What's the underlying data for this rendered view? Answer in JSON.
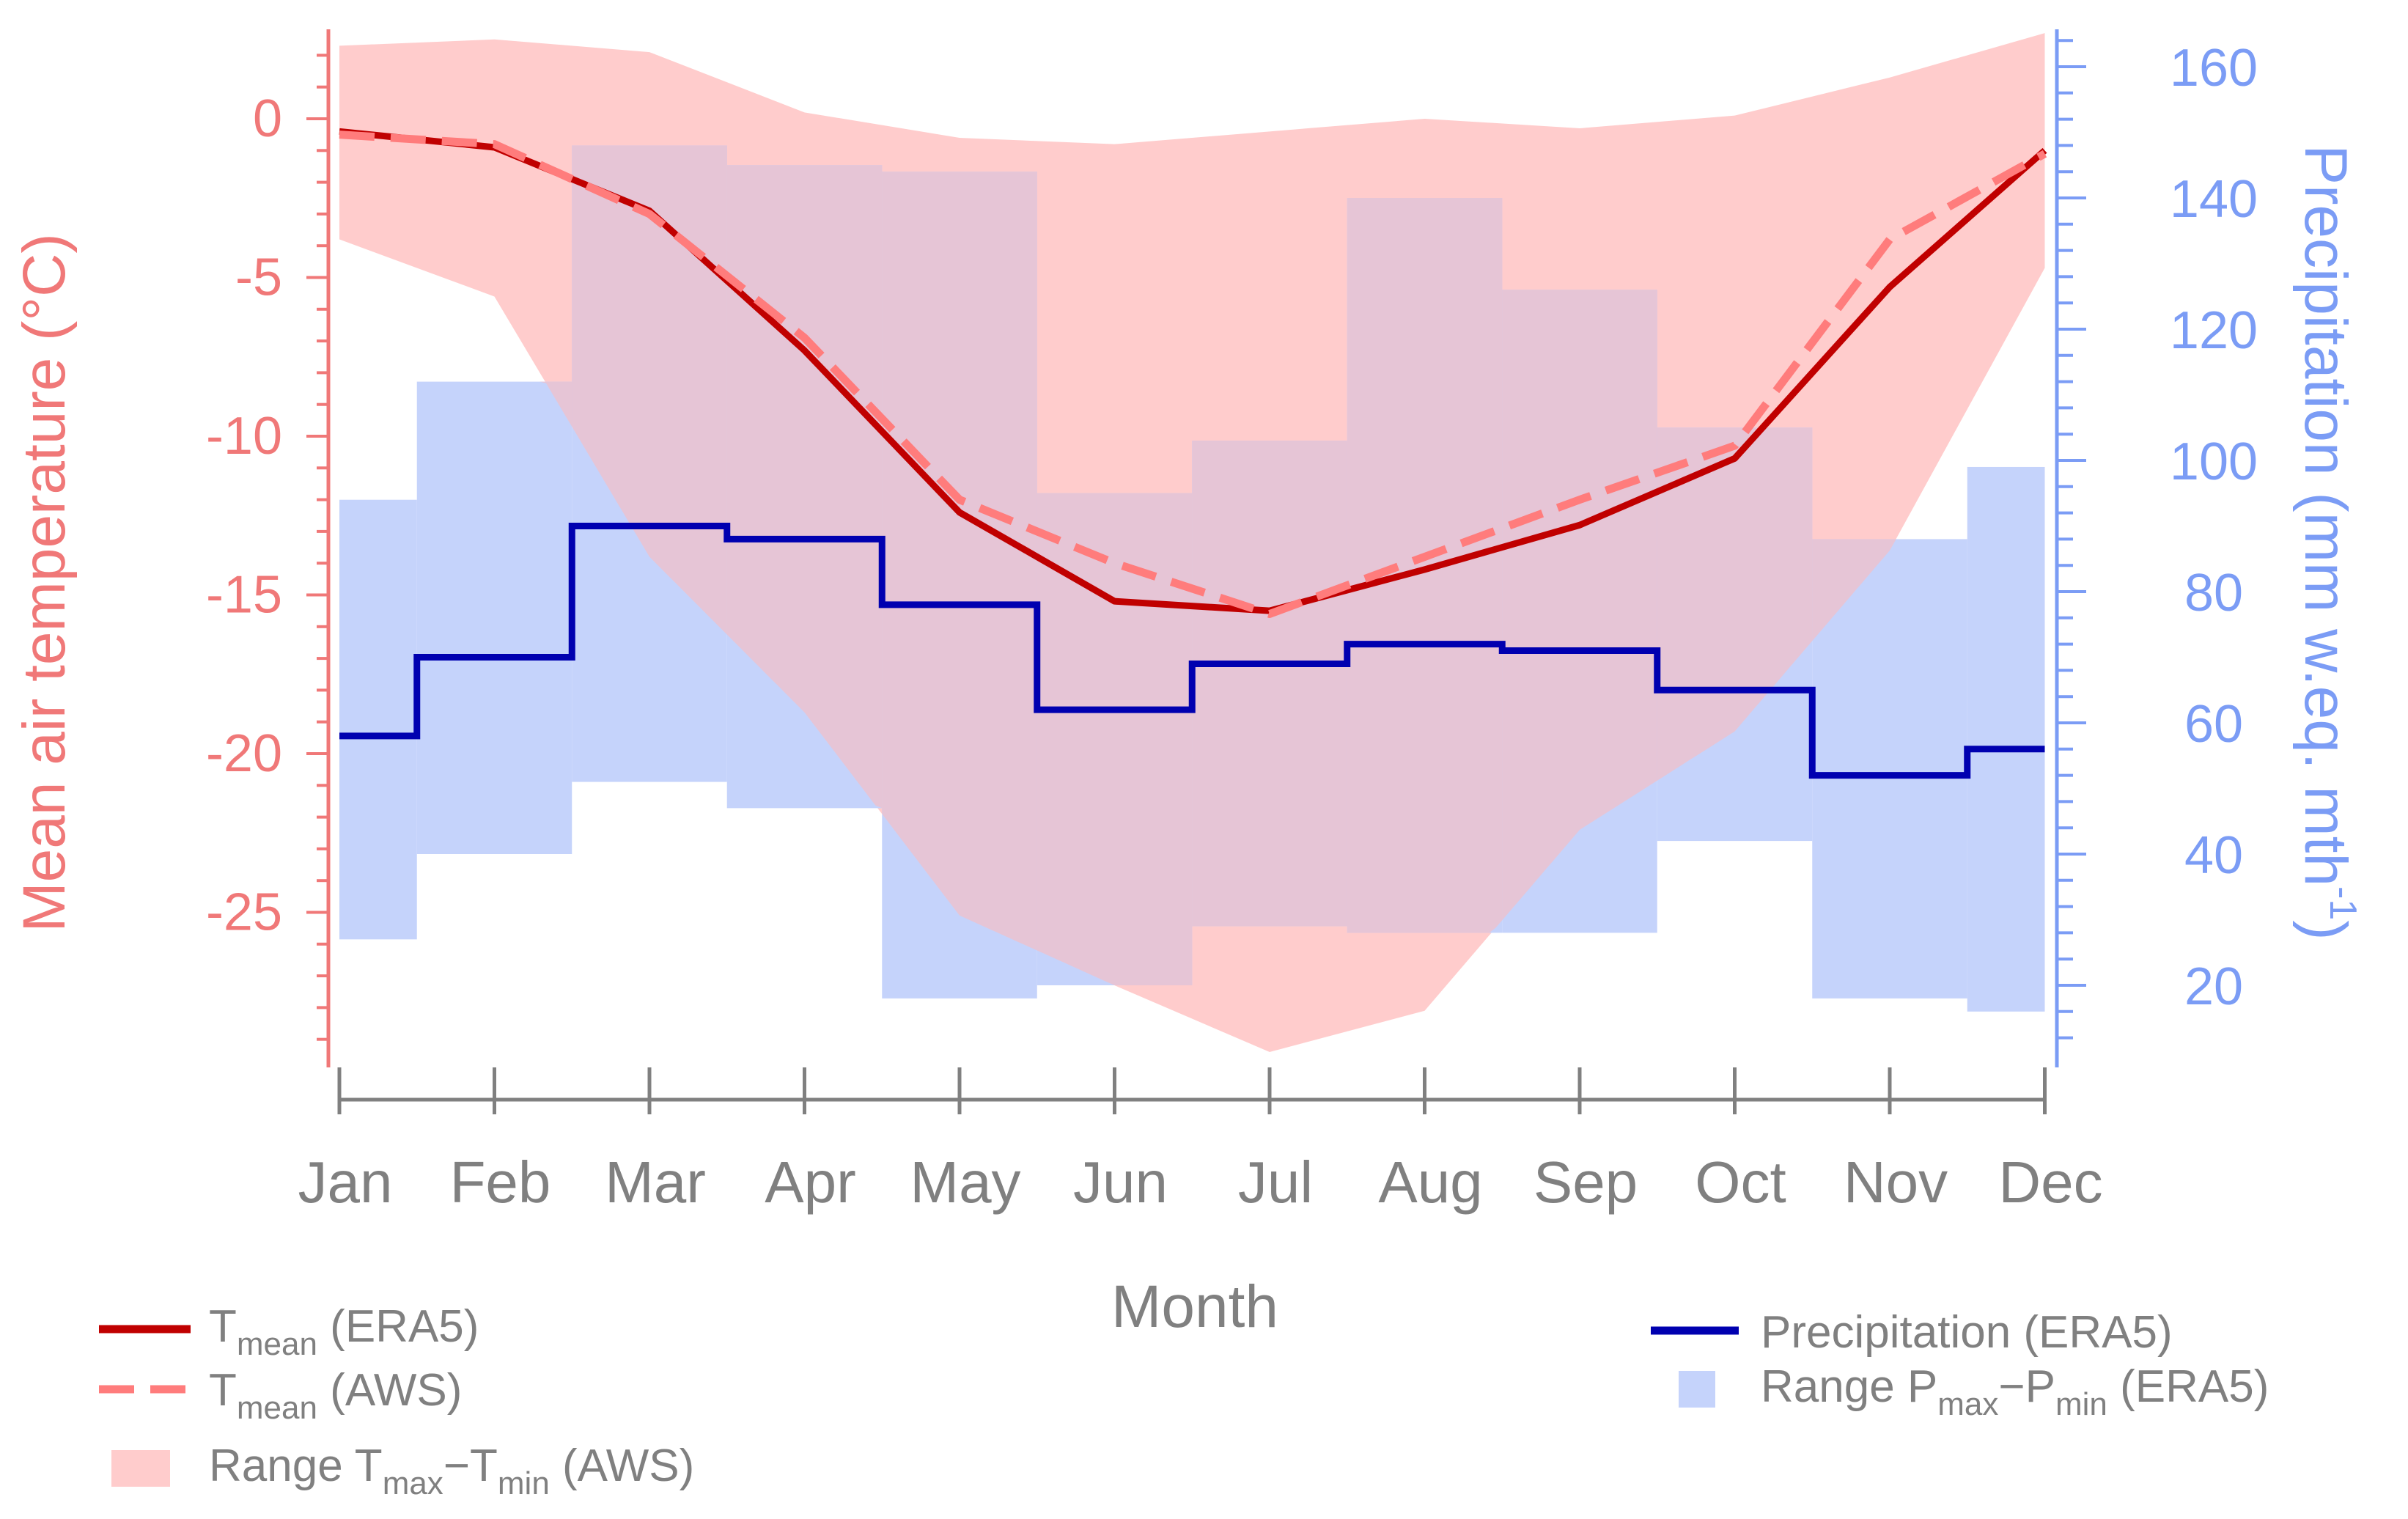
{
  "chart_data": {
    "type": "line",
    "title": "",
    "xlabel": "Month",
    "ylabel_left": "Mean air temperature (°C)",
    "ylabel_right": {
      "main": "Precipitation (mm w.eq. mth",
      "sup": "-1",
      "close": ")"
    },
    "categories": [
      "Jan",
      "Feb",
      "Mar",
      "Apr",
      "May",
      "Jun",
      "Jul",
      "Aug",
      "Sep",
      "Oct",
      "Nov",
      "Dec"
    ],
    "ylim_left": [
      -29.5,
      3
    ],
    "ylim_right": [
      10,
      165
    ],
    "yticks_left": [
      0,
      -5,
      -10,
      -15,
      -20,
      -25
    ],
    "yticks_right": [
      160,
      140,
      120,
      100,
      80,
      60,
      40,
      20
    ],
    "colors": {
      "left_axis": "#f07878",
      "right_axis": "#7b9cf5",
      "x_axis": "#808080",
      "t_era5": "#c00000",
      "t_aws": "#ff7c7c",
      "t_range": "#ffcccc",
      "p_era5": "#0000b0",
      "p_range": "#c5d3fb",
      "overlap": "#e6c5d6"
    },
    "series": [
      {
        "name": "Tmean (ERA5)",
        "axis": "left",
        "style": "solid",
        "values": [
          -0.4,
          -0.9,
          -2.9,
          -7.3,
          -12.4,
          -15.2,
          -15.5,
          -14.2,
          -12.8,
          -10.7,
          -5.3,
          -1.0
        ]
      },
      {
        "name": "Tmean (AWS)",
        "axis": "left",
        "style": "dashed",
        "values": [
          -0.5,
          -0.8,
          -3.0,
          -6.9,
          -12.0,
          -14.0,
          -15.6,
          -13.8,
          -12.0,
          -10.3,
          -3.8,
          -1.1
        ]
      },
      {
        "name": "Range Tmax−Tmin (AWS)",
        "axis": "left",
        "style": "band",
        "upper": [
          2.3,
          2.5,
          2.1,
          0.2,
          -0.6,
          -0.8,
          -0.4,
          0.0,
          -0.3,
          0.1,
          1.3,
          2.7
        ],
        "lower": [
          -3.8,
          -5.6,
          -13.8,
          -18.7,
          -25.1,
          -27.3,
          -29.4,
          -28.1,
          -22.4,
          -19.3,
          -13.6,
          -4.7
        ]
      },
      {
        "name": "Precipitation (ERA5)",
        "axis": "right",
        "style": "step",
        "values": [
          58,
          70,
          90,
          88,
          78,
          62,
          69,
          72,
          71,
          65,
          52,
          56
        ]
      },
      {
        "name": "Range Pmax−Pmin (ERA5)",
        "axis": "right",
        "style": "step-band",
        "upper": [
          94,
          112,
          148,
          145,
          144,
          95,
          103,
          140,
          126,
          105,
          88,
          99
        ],
        "lower": [
          27,
          40,
          51,
          47,
          18,
          20,
          29,
          28,
          28,
          42,
          18,
          16
        ]
      }
    ],
    "legend": {
      "t_era5": {
        "sym": "T",
        "sub": "mean",
        "rest": " (ERA5)"
      },
      "t_aws": {
        "sym": "T",
        "sub": "mean",
        "rest": " (AWS)"
      },
      "t_range": {
        "pre": "Range T",
        "sub1": "max",
        "mid": "−T",
        "sub2": "min",
        "rest": " (AWS)"
      },
      "p_era5": {
        "label": "Precipitation (ERA5)"
      },
      "p_range": {
        "pre": "Range P",
        "sub1": "max",
        "mid": "−P",
        "sub2": "min",
        "rest": " (ERA5)"
      }
    }
  }
}
